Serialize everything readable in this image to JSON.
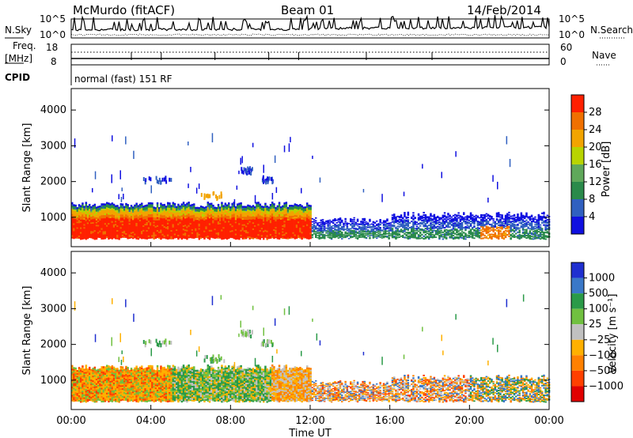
{
  "header": {
    "station": "McMurdo (fitACF)",
    "beam": "Beam 01",
    "date": "14/Feb/2014"
  },
  "panels": {
    "nsky_label": "N.Sky",
    "nsearch_label": "N.Search",
    "freq_label_line1": "Freq.",
    "freq_label_line2": "[MHz]",
    "nave_label": "Nave",
    "cpid_label": "CPID",
    "cpid_text": "normal (fast) 151 RF",
    "noise_ticks_left": [
      "10^5",
      "10^0"
    ],
    "noise_ticks_right": [
      "10^5",
      "10^0"
    ],
    "freq_ticks": [
      "18",
      "8"
    ],
    "nave_ticks": [
      "60",
      "0"
    ]
  },
  "chart_data": [
    {
      "type": "heatmap",
      "panel": "power",
      "ylabel": "Slant Range [km]",
      "xlabel": "",
      "ylim": [
        180,
        4600
      ],
      "yticks": [
        "1000",
        "2000",
        "3000",
        "4000"
      ],
      "colorbar_label": "Power [dB]",
      "colorbar_ticks": [
        "4",
        "8",
        "12",
        "16",
        "20",
        "24",
        "28"
      ],
      "colors": [
        "#1010e0",
        "#3060c0",
        "#2a8a4a",
        "#5fa85a",
        "#b8d400",
        "#f2a400",
        "#f07000",
        "#ff2000"
      ],
      "features": [
        {
          "t_start": 0.0,
          "t_end": 12.0,
          "r_min": 400,
          "r_max": 1400,
          "level": "strong"
        },
        {
          "t_start": 12.0,
          "t_end": 24.0,
          "r_min": 400,
          "r_max": 1200,
          "level": "weak"
        },
        {
          "t_start": 20.5,
          "t_end": 22.0,
          "r_min": 500,
          "r_max": 900,
          "level": "moderate"
        }
      ]
    },
    {
      "type": "heatmap",
      "panel": "velocity",
      "ylabel": "Slant Range [km]",
      "xlabel": "Time UT",
      "ylim": [
        180,
        4600
      ],
      "yticks": [
        "1000",
        "2000",
        "3000",
        "4000"
      ],
      "xticks": [
        "00:00",
        "04:00",
        "08:00",
        "12:00",
        "16:00",
        "20:00",
        "00:00"
      ],
      "colorbar_label": "Velocity [m s⁻¹]",
      "colorbar_ticks": [
        "1000",
        "500",
        "100",
        "25",
        "−25",
        "−100",
        "−500",
        "−1000"
      ],
      "colors": [
        "#1f2fd0",
        "#3a78c8",
        "#2a9a48",
        "#70c040",
        "#c0c0c0",
        "#ffb000",
        "#ff8000",
        "#ff4000",
        "#e00000"
      ]
    }
  ]
}
